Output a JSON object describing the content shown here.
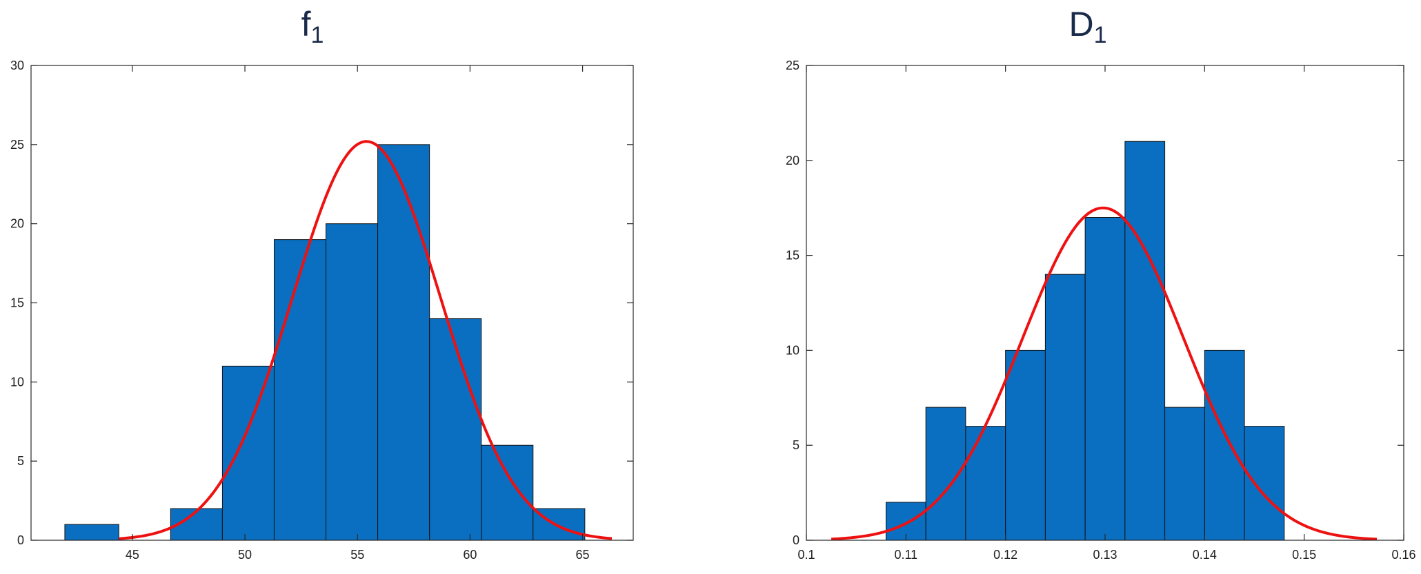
{
  "chart_data": [
    {
      "type": "bar",
      "title": "f",
      "title_subscript": "1",
      "xlim": [
        40.5,
        67.25
      ],
      "ylim": [
        0,
        30
      ],
      "xticks": [
        45,
        50,
        55,
        60,
        65
      ],
      "yticks": [
        0,
        5,
        10,
        15,
        20,
        25,
        30
      ],
      "bins": [
        {
          "start": 42.0,
          "end": 44.4,
          "value": 1
        },
        {
          "start": 44.4,
          "end": 46.7,
          "value": 0
        },
        {
          "start": 46.7,
          "end": 49.0,
          "value": 2
        },
        {
          "start": 49.0,
          "end": 51.3,
          "value": 11
        },
        {
          "start": 51.3,
          "end": 53.6,
          "value": 19
        },
        {
          "start": 53.6,
          "end": 55.9,
          "value": 20
        },
        {
          "start": 55.9,
          "end": 58.2,
          "value": 25
        },
        {
          "start": 58.2,
          "end": 60.5,
          "value": 14
        },
        {
          "start": 60.5,
          "end": 62.8,
          "value": 6
        },
        {
          "start": 62.8,
          "end": 65.1,
          "value": 2
        }
      ],
      "fit_curve": {
        "type": "normal",
        "mean": 55.4,
        "peak": 25.2,
        "sd": 3.3,
        "x_range": [
          44.4,
          66.3
        ],
        "color": "#ee1111"
      },
      "bar_color": "#0a6fc0",
      "grid": false
    },
    {
      "type": "bar",
      "title": "D",
      "title_subscript": "1",
      "xlim": [
        0.1,
        0.16
      ],
      "ylim": [
        0,
        25
      ],
      "xticks": [
        0.1,
        0.11,
        0.12,
        0.13,
        0.14,
        0.15,
        0.16
      ],
      "yticks": [
        0,
        5,
        10,
        15,
        20,
        25
      ],
      "bins": [
        {
          "start": 0.108,
          "end": 0.112,
          "value": 2
        },
        {
          "start": 0.112,
          "end": 0.116,
          "value": 7
        },
        {
          "start": 0.116,
          "end": 0.12,
          "value": 6
        },
        {
          "start": 0.12,
          "end": 0.124,
          "value": 10
        },
        {
          "start": 0.124,
          "end": 0.128,
          "value": 14
        },
        {
          "start": 0.128,
          "end": 0.132,
          "value": 17
        },
        {
          "start": 0.132,
          "end": 0.136,
          "value": 21
        },
        {
          "start": 0.136,
          "end": 0.14,
          "value": 7
        },
        {
          "start": 0.14,
          "end": 0.144,
          "value": 10
        },
        {
          "start": 0.144,
          "end": 0.148,
          "value": 6
        }
      ],
      "fit_curve": {
        "type": "normal",
        "mean": 0.1298,
        "peak": 17.5,
        "sd": 0.0081,
        "x_range": [
          0.1025,
          0.1573
        ],
        "color": "#ee1111"
      },
      "bar_color": "#0a6fc0",
      "grid": false
    }
  ]
}
